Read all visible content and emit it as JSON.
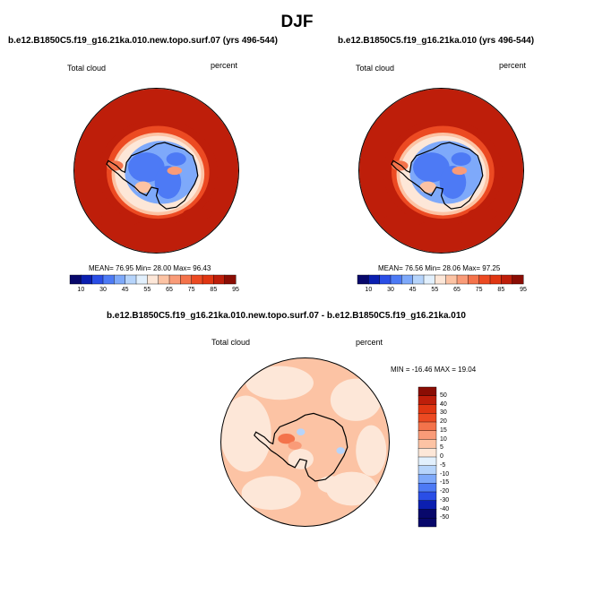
{
  "page": {
    "title": "DJF"
  },
  "palettes": {
    "abs": [
      "#08086b",
      "#0b1fb0",
      "#2a4ee6",
      "#4d7af5",
      "#7ea9fa",
      "#b6d4fb",
      "#e2f0fd",
      "#fde7d8",
      "#fcc3a4",
      "#f99b78",
      "#f4734b",
      "#ec4a22",
      "#e03612",
      "#be1e0a",
      "#8a0d04"
    ],
    "diff": [
      "#08086b",
      "#0b1fb0",
      "#2a4ee6",
      "#4d7af5",
      "#7ea9fa",
      "#b6d4fb",
      "#e2f0fd",
      "#fde7d8",
      "#fcc3a4",
      "#f99b78",
      "#f4734b",
      "#ec4a22",
      "#e03612",
      "#be1e0a",
      "#8a0d04"
    ],
    "coast": "#000000"
  },
  "chart_data": [
    {
      "type": "heatmap",
      "title": "b.e12.B1850C5.f19_g16.21ka.010.new.topo.surf.07 (yrs 496-544)",
      "variable": "Total cloud",
      "units": "percent",
      "stats": "MEAN= 76.95  Min= 28.00  Max= 96.43",
      "mean": 76.95,
      "min": 28.0,
      "max": 96.43,
      "colorbar_ticks": [
        "10",
        "30",
        "45",
        "55",
        "65",
        "75",
        "85",
        "95"
      ],
      "fields": {
        "ocean": 90,
        "coastal_ring": 65,
        "plateau": 35,
        "interior": 45,
        "peninsula": 75
      }
    },
    {
      "type": "heatmap",
      "title": "b.e12.B1850C5.f19_g16.21ka.010 (yrs 496-544)",
      "variable": "Total cloud",
      "units": "percent",
      "stats": "MEAN= 76.56  Min= 28.06  Max= 97.25",
      "mean": 76.56,
      "min": 28.06,
      "max": 97.25,
      "colorbar_ticks": [
        "10",
        "30",
        "45",
        "55",
        "65",
        "75",
        "85",
        "95"
      ],
      "fields": {
        "ocean": 90,
        "coastal_ring": 65,
        "plateau": 35,
        "interior": 45,
        "peninsula": 75
      }
    },
    {
      "type": "heatmap",
      "title": "b.e12.B1850C5.f19_g16.21ka.010.new.topo.surf.07 - b.e12.B1850C5.f19_g16.21ka.010",
      "variable": "Total cloud",
      "units": "percent",
      "stats": "MIN = -16.46 MAX =  19.04",
      "min": -16.46,
      "max": 19.04,
      "colorbar_ticks": [
        "50",
        "40",
        "30",
        "20",
        "15",
        "10",
        "5",
        "0",
        "-5",
        "-10",
        "-15",
        "-20",
        "-30",
        "-40",
        "-50"
      ],
      "fields": {
        "background_positive": 3,
        "background_negative": -3
      }
    }
  ]
}
